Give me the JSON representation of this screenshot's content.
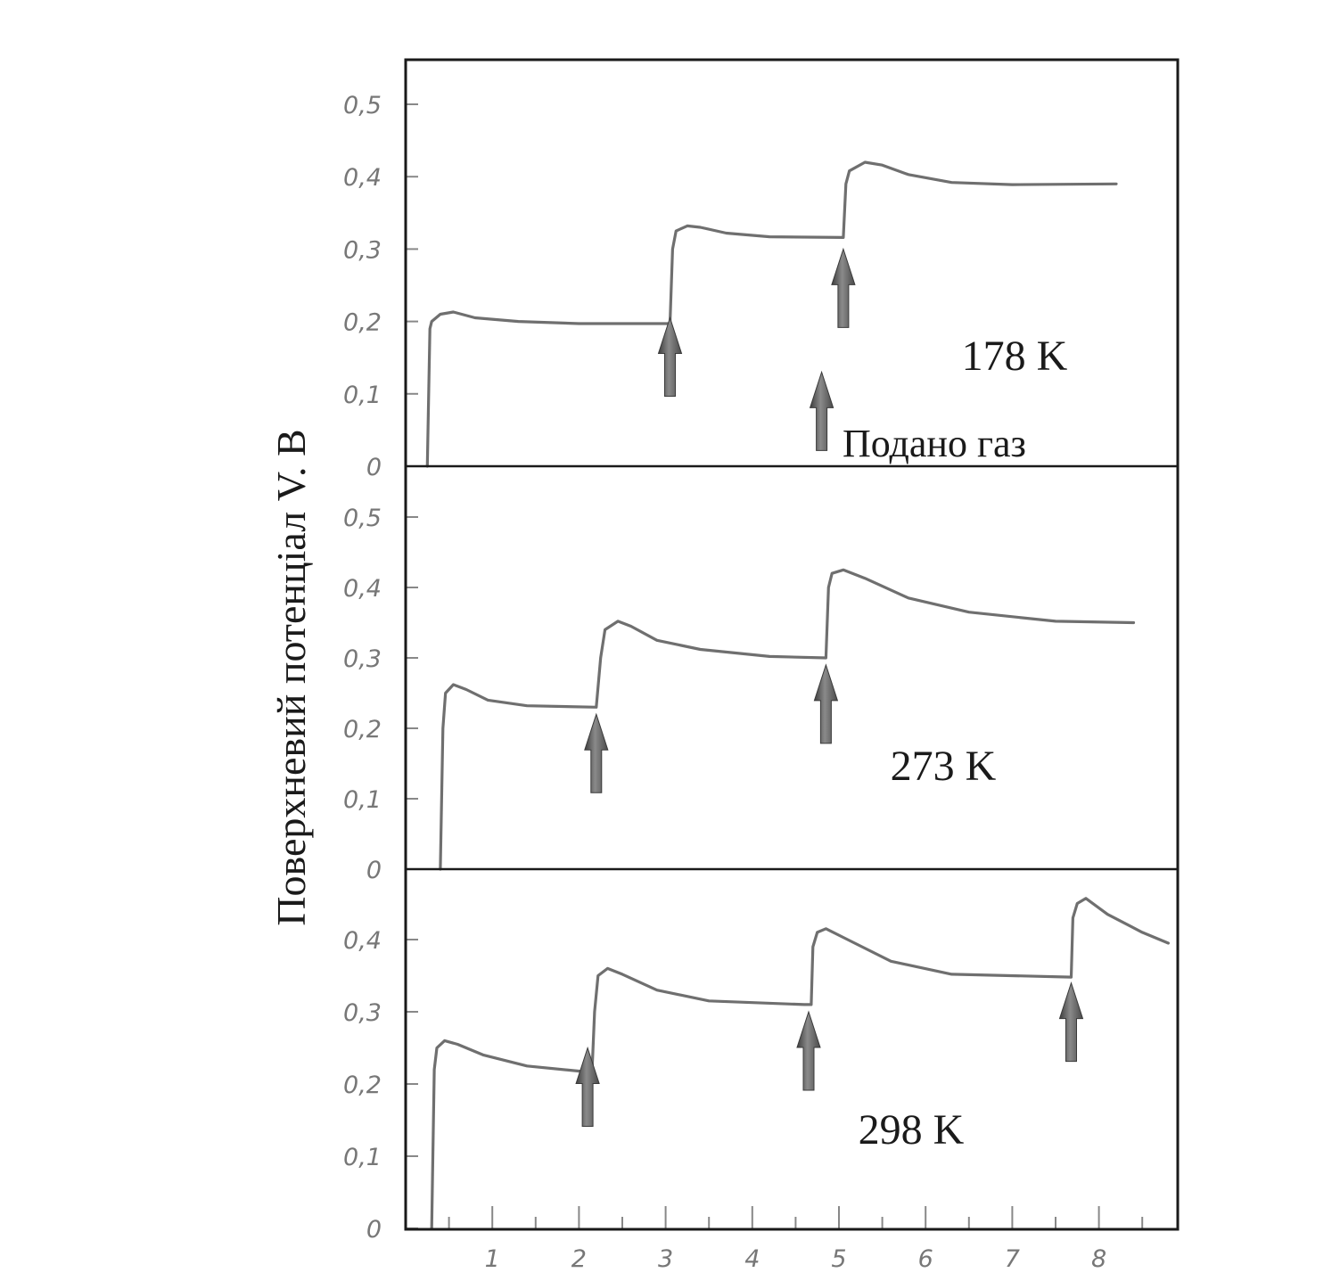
{
  "chart_data": {
    "type": "line",
    "ylabel": "Поверхневий потенціал V. В",
    "xlabel": "",
    "xlim": [
      0,
      8.9
    ],
    "x_ticks": [
      "1",
      "2",
      "3",
      "4",
      "5",
      "6",
      "7",
      "8"
    ],
    "gas_label": "Подано газ",
    "colors": {
      "curve": "#6f6f6f",
      "arrow": "#555555",
      "frame": "#1a1a1a"
    },
    "panels": [
      {
        "label": "178 K",
        "ylim": [
          0,
          0.5
        ],
        "y_ticks": [
          "0",
          "0,1",
          "0,2",
          "0,3",
          "0,4",
          "0,5"
        ],
        "series": [
          {
            "points": [
              [
                0.25,
                0
              ],
              [
                0.28,
                0.19
              ],
              [
                0.3,
                0.2
              ],
              [
                0.4,
                0.21
              ],
              [
                0.55,
                0.213
              ],
              [
                0.8,
                0.205
              ],
              [
                1.3,
                0.2
              ],
              [
                2,
                0.197
              ],
              [
                3.05,
                0.197
              ],
              [
                3.08,
                0.3
              ],
              [
                3.12,
                0.325
              ],
              [
                3.25,
                0.332
              ],
              [
                3.4,
                0.33
              ],
              [
                3.7,
                0.322
              ],
              [
                4.2,
                0.317
              ],
              [
                5.05,
                0.316
              ],
              [
                5.08,
                0.39
              ],
              [
                5.12,
                0.408
              ],
              [
                5.3,
                0.42
              ],
              [
                5.5,
                0.416
              ],
              [
                5.8,
                0.403
              ],
              [
                6.3,
                0.392
              ],
              [
                7,
                0.389
              ],
              [
                8.2,
                0.39
              ]
            ]
          }
        ],
        "arrows": [
          3.05,
          4.8,
          5.05
        ]
      },
      {
        "label": "273 K",
        "ylim": [
          0,
          0.55
        ],
        "y_ticks": [
          "0",
          "0,1",
          "0,2",
          "0,3",
          "0,4",
          "0,5"
        ],
        "series": [
          {
            "points": [
              [
                0.4,
                0
              ],
              [
                0.43,
                0.2
              ],
              [
                0.46,
                0.25
              ],
              [
                0.55,
                0.262
              ],
              [
                0.7,
                0.255
              ],
              [
                0.95,
                0.24
              ],
              [
                1.4,
                0.232
              ],
              [
                2.2,
                0.23
              ],
              [
                2.25,
                0.3
              ],
              [
                2.3,
                0.34
              ],
              [
                2.45,
                0.352
              ],
              [
                2.6,
                0.345
              ],
              [
                2.9,
                0.325
              ],
              [
                3.4,
                0.312
              ],
              [
                4.2,
                0.302
              ],
              [
                4.85,
                0.3
              ],
              [
                4.88,
                0.4
              ],
              [
                4.92,
                0.42
              ],
              [
                5.05,
                0.425
              ],
              [
                5.3,
                0.413
              ],
              [
                5.8,
                0.385
              ],
              [
                6.5,
                0.365
              ],
              [
                7.5,
                0.352
              ],
              [
                8.4,
                0.35
              ]
            ]
          }
        ],
        "arrows": [
          2.2,
          4.85
        ]
      },
      {
        "label": "298 K",
        "ylim": [
          0,
          0.5
        ],
        "y_ticks": [
          "0",
          "0,1",
          "0,2",
          "0,3",
          "0,4"
        ],
        "series": [
          {
            "points": [
              [
                0.3,
                0
              ],
              [
                0.33,
                0.22
              ],
              [
                0.36,
                0.25
              ],
              [
                0.45,
                0.26
              ],
              [
                0.6,
                0.255
              ],
              [
                0.9,
                0.24
              ],
              [
                1.4,
                0.225
              ],
              [
                2.15,
                0.216
              ],
              [
                2.18,
                0.3
              ],
              [
                2.22,
                0.35
              ],
              [
                2.33,
                0.36
              ],
              [
                2.5,
                0.352
              ],
              [
                2.9,
                0.33
              ],
              [
                3.5,
                0.315
              ],
              [
                4.6,
                0.31
              ],
              [
                4.68,
                0.31
              ],
              [
                4.7,
                0.39
              ],
              [
                4.75,
                0.41
              ],
              [
                4.85,
                0.415
              ],
              [
                5.1,
                0.4
              ],
              [
                5.6,
                0.37
              ],
              [
                6.3,
                0.352
              ],
              [
                7.68,
                0.348
              ],
              [
                7.7,
                0.43
              ],
              [
                7.75,
                0.45
              ],
              [
                7.85,
                0.457
              ],
              [
                8.1,
                0.435
              ],
              [
                8.5,
                0.41
              ],
              [
                8.8,
                0.395
              ]
            ]
          }
        ],
        "arrows": [
          2.1,
          4.65,
          7.68
        ]
      }
    ]
  }
}
